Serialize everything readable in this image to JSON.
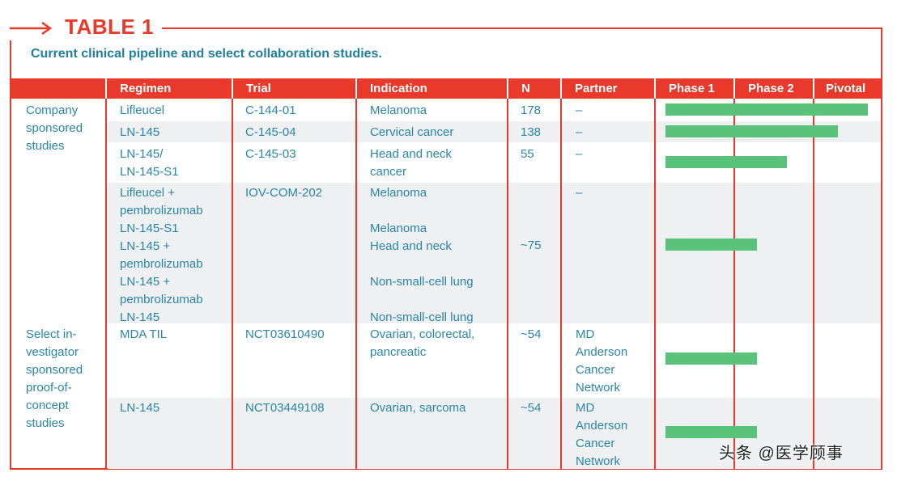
{
  "title": "TABLE 1",
  "caption": "Current clinical pipeline and select collaboration studies.",
  "headers": {
    "regimen": "Regimen",
    "trial": "Trial",
    "indication": "Indication",
    "n": "N",
    "partner": "Partner",
    "phase1": "Phase 1",
    "phase2": "Phase 2",
    "pivotal": "Pivotal"
  },
  "groups": [
    "Company\nsponsored\nstudies",
    "Select in-\nvestigator\nsponsored\nproof-of-\nconcept\nstudies"
  ],
  "rows": [
    {
      "regimen": "Lifleucel",
      "trial": "C-144-01",
      "indication": "Melanoma",
      "n": "178",
      "partner": "–",
      "progress": 1.0
    },
    {
      "regimen": "LN-145",
      "trial": "C-145-04",
      "indication": "Cervical cancer",
      "n": "138",
      "partner": "–",
      "progress": 0.85
    },
    {
      "regimen": "LN-145/\nLN-145-S1",
      "trial": "C-145-03",
      "indication": "Head and neck\ncancer",
      "n": "55",
      "partner": "–",
      "progress": 0.6
    },
    {
      "regimen": "Lifleucel +\npembrolizumab\nLN-145-S1\nLN-145 +\npembrolizumab\nLN-145 +\npembrolizumab\nLN-145",
      "trial": "IOV-COM-202",
      "indication": "Melanoma\n\nMelanoma\nHead and neck\n\nNon-small-cell lung\n\nNon-small-cell lung",
      "n": "~75",
      "partner": "–",
      "progress": 0.45
    },
    {
      "regimen": "MDA TIL",
      "trial": "NCT03610490",
      "indication": "Ovarian, colorectal,\npancreatic",
      "n": "~54",
      "partner": "MD\nAnderson\nCancer\nNetwork",
      "progress": 0.45
    },
    {
      "regimen": "LN-145",
      "trial": "NCT03449108",
      "indication": "Ovarian, sarcoma",
      "n": "~54",
      "partner": "MD\nAnderson\nCancer\nNetwork",
      "progress": 0.45
    }
  ],
  "watermark": "头条 @医学顾事",
  "colors": {
    "accent": "#e8392b",
    "text": "#2a86a8",
    "bar": "#5ac27a"
  }
}
